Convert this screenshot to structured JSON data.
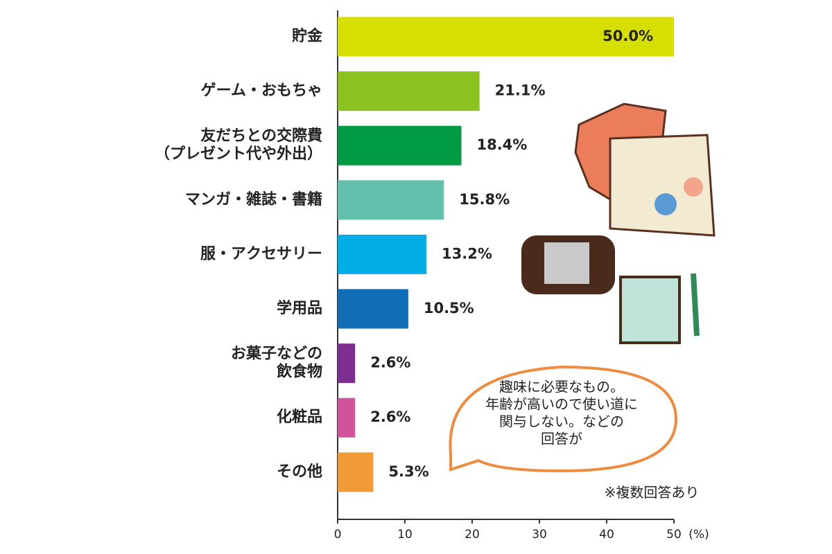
{
  "chart_data": {
    "type": "barh",
    "categories": [
      "貯金",
      "ゲーム・おもちゃ",
      "友だちとの交際費\n（プレゼント代や外出）",
      "マンガ・雑誌・書籍",
      "服・アクセサリー",
      "学用品",
      "お菓子などの\n飲食物",
      "化粧品",
      "その他"
    ],
    "values": [
      50.0,
      21.1,
      18.4,
      15.8,
      13.2,
      10.5,
      2.6,
      2.6,
      5.3
    ],
    "value_labels": [
      "50.0%",
      "21.1%",
      "18.4%",
      "15.8%",
      "13.2%",
      "10.5%",
      "2.6%",
      "2.6%",
      "5.3%"
    ],
    "colors": [
      "#d7df00",
      "#8cc21f",
      "#009944",
      "#63c0ad",
      "#00aee6",
      "#0f6eb5",
      "#7d2e8e",
      "#d0539b",
      "#f19a38"
    ],
    "xlim": [
      0,
      50
    ],
    "xticks": [
      0,
      10,
      20,
      30,
      40,
      50
    ],
    "x_label": "(%)",
    "annotation": "趣味に必要なもの。\n年齢が高いので使い道に\n関与しない。などの\n回答が",
    "note": "※複数回答あり"
  }
}
